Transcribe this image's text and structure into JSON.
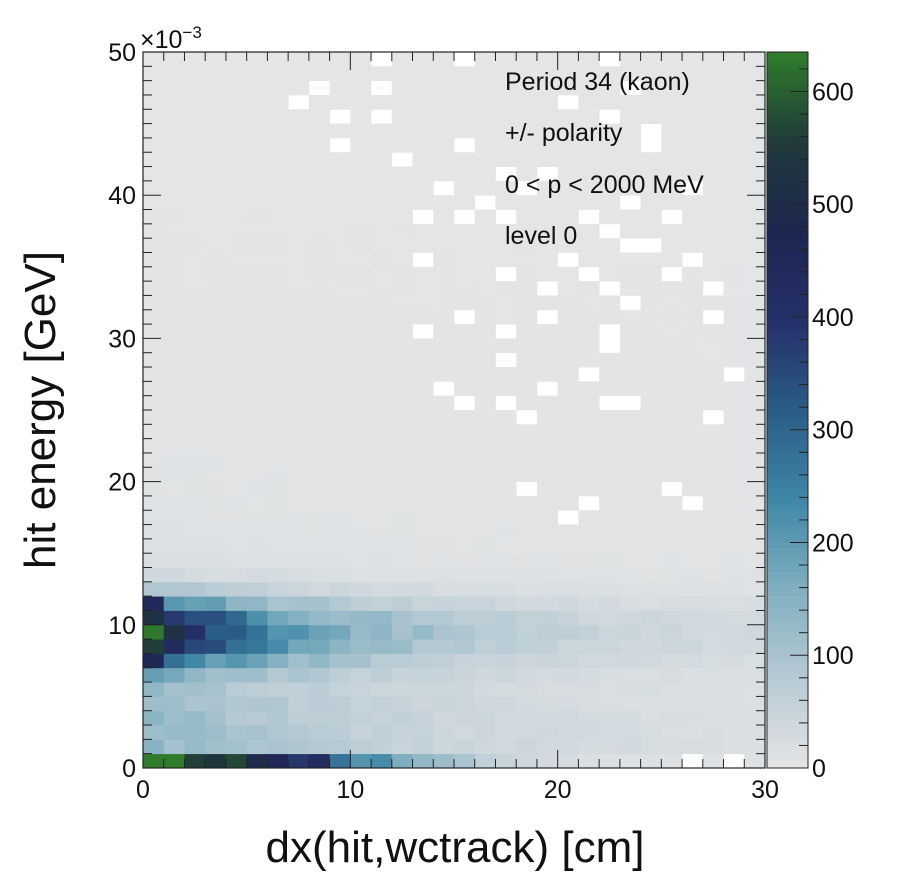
{
  "chart_data": {
    "type": "heatmap",
    "title": "",
    "xlabel": "dx(hit,wctrack) [cm]",
    "ylabel": "hit energy [GeV]",
    "y_scale_label": "×10",
    "y_scale_exponent": "−3",
    "xlim": [
      0,
      30
    ],
    "ylim": [
      0,
      0.05
    ],
    "x_ticks": [
      "0",
      "10",
      "20",
      "30"
    ],
    "y_ticks": [
      "0",
      "10",
      "20",
      "30",
      "40",
      "50"
    ],
    "x_bins": 30,
    "y_bins": 50,
    "x_bin_width": 1.0,
    "y_bin_width": 0.001,
    "z_range": [
      0,
      635
    ],
    "colorbar_ticks": [
      "0",
      "100",
      "200",
      "300",
      "400",
      "500",
      "600"
    ],
    "colormap": [
      "#e4e5e6",
      "#b7cad4",
      "#80afc0",
      "#3f87a6",
      "#2a5d86",
      "#25306a",
      "#1d2650",
      "#203a3a",
      "#2f7d2c"
    ],
    "annotations": [
      "Period 34 (kaon)",
      "+/- polarity",
      "0 < p < 2000 MeV",
      "level 0"
    ],
    "empty_bins": [
      [
        11,
        49
      ],
      [
        15,
        49
      ],
      [
        22,
        49
      ],
      [
        8,
        47
      ],
      [
        7,
        46
      ],
      [
        11,
        47
      ],
      [
        20,
        46
      ],
      [
        23,
        47
      ],
      [
        9,
        45
      ],
      [
        11,
        45
      ],
      [
        24,
        44
      ],
      [
        22,
        45
      ],
      [
        24,
        43
      ],
      [
        15,
        43
      ],
      [
        9,
        43
      ],
      [
        12,
        42
      ],
      [
        17,
        41
      ],
      [
        19,
        41
      ],
      [
        18,
        40
      ],
      [
        23,
        39
      ],
      [
        25,
        38
      ],
      [
        26,
        40
      ],
      [
        16,
        39
      ],
      [
        15,
        38
      ],
      [
        17,
        38
      ],
      [
        13,
        38
      ],
      [
        14,
        40
      ],
      [
        22,
        37
      ],
      [
        23,
        36
      ],
      [
        21,
        38
      ],
      [
        24,
        36
      ],
      [
        13,
        35
      ],
      [
        20,
        35
      ],
      [
        17,
        34
      ],
      [
        19,
        33
      ],
      [
        26,
        35
      ],
      [
        25,
        34
      ],
      [
        27,
        33
      ],
      [
        21,
        34
      ],
      [
        22,
        33
      ],
      [
        13,
        30
      ],
      [
        17,
        30
      ],
      [
        15,
        31
      ],
      [
        19,
        31
      ],
      [
        22,
        30
      ],
      [
        23,
        32
      ],
      [
        27,
        31
      ],
      [
        22,
        29
      ],
      [
        17,
        28
      ],
      [
        21,
        27
      ],
      [
        28,
        27
      ],
      [
        14,
        26
      ],
      [
        22,
        25
      ],
      [
        17,
        25
      ],
      [
        18,
        24
      ],
      [
        23,
        25
      ],
      [
        27,
        24
      ],
      [
        19,
        26
      ],
      [
        15,
        25
      ],
      [
        18,
        19
      ],
      [
        25,
        19
      ],
      [
        20,
        17
      ],
      [
        21,
        18
      ],
      [
        26,
        18
      ],
      [
        26,
        0
      ],
      [
        28,
        0
      ]
    ],
    "hot_bins": [
      {
        "x_bin": 0,
        "y_bin": 0,
        "count": 635
      },
      {
        "x_bin": 1,
        "y_bin": 0,
        "count": 635
      },
      {
        "x_bin": 0,
        "y_bin": 9,
        "count": 630
      },
      {
        "x_bin": 0,
        "y_bin": 8,
        "count": 560
      },
      {
        "x_bin": 0,
        "y_bin": 10,
        "count": 520
      },
      {
        "x_bin": 1,
        "y_bin": 9,
        "count": 520
      },
      {
        "x_bin": 0,
        "y_bin": 7,
        "count": 460
      },
      {
        "x_bin": 0,
        "y_bin": 11,
        "count": 450
      },
      {
        "x_bin": 2,
        "y_bin": 0,
        "count": 560
      },
      {
        "x_bin": 3,
        "y_bin": 0,
        "count": 540
      },
      {
        "x_bin": 4,
        "y_bin": 0,
        "count": 570
      },
      {
        "x_bin": 8,
        "y_bin": 0,
        "count": 430
      }
    ]
  }
}
